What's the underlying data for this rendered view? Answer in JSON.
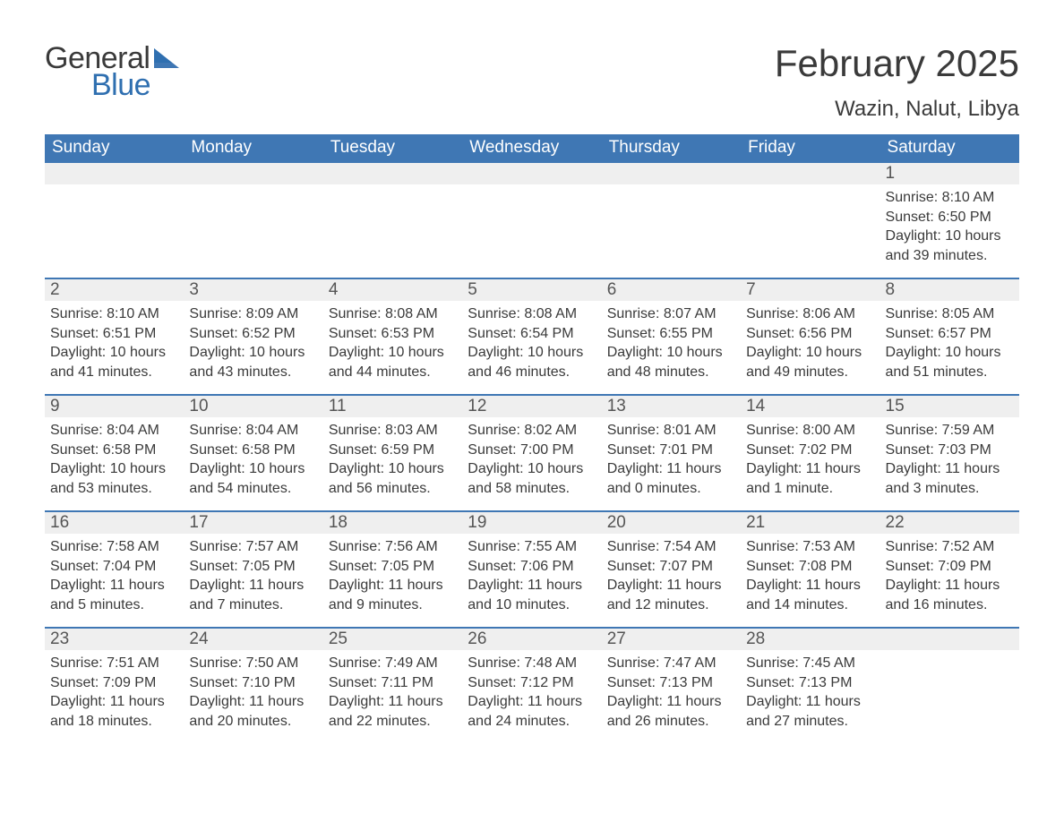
{
  "brand": {
    "word1": "General",
    "word2": "Blue",
    "triangle_color": "#3f77b4"
  },
  "title": "February 2025",
  "location": "Wazin, Nalut, Libya",
  "colors": {
    "header_bg": "#3f77b4",
    "header_text": "#ffffff",
    "band_bg": "#efefef",
    "rule": "#3f77b4",
    "body_text": "#3a3a3a",
    "page_bg": "#ffffff",
    "logo_blue": "#2f6fb0"
  },
  "typography": {
    "month_title_fontsize": 42,
    "location_fontsize": 24,
    "dow_fontsize": 19,
    "daynum_fontsize": 19,
    "body_fontsize": 16
  },
  "days_of_week": [
    "Sunday",
    "Monday",
    "Tuesday",
    "Wednesday",
    "Thursday",
    "Friday",
    "Saturday"
  ],
  "weeks": [
    [
      {
        "n": "",
        "sunrise": "",
        "sunset": "",
        "daylight": ""
      },
      {
        "n": "",
        "sunrise": "",
        "sunset": "",
        "daylight": ""
      },
      {
        "n": "",
        "sunrise": "",
        "sunset": "",
        "daylight": ""
      },
      {
        "n": "",
        "sunrise": "",
        "sunset": "",
        "daylight": ""
      },
      {
        "n": "",
        "sunrise": "",
        "sunset": "",
        "daylight": ""
      },
      {
        "n": "",
        "sunrise": "",
        "sunset": "",
        "daylight": ""
      },
      {
        "n": "1",
        "sunrise": "Sunrise: 8:10 AM",
        "sunset": "Sunset: 6:50 PM",
        "daylight": "Daylight: 10 hours and 39 minutes."
      }
    ],
    [
      {
        "n": "2",
        "sunrise": "Sunrise: 8:10 AM",
        "sunset": "Sunset: 6:51 PM",
        "daylight": "Daylight: 10 hours and 41 minutes."
      },
      {
        "n": "3",
        "sunrise": "Sunrise: 8:09 AM",
        "sunset": "Sunset: 6:52 PM",
        "daylight": "Daylight: 10 hours and 43 minutes."
      },
      {
        "n": "4",
        "sunrise": "Sunrise: 8:08 AM",
        "sunset": "Sunset: 6:53 PM",
        "daylight": "Daylight: 10 hours and 44 minutes."
      },
      {
        "n": "5",
        "sunrise": "Sunrise: 8:08 AM",
        "sunset": "Sunset: 6:54 PM",
        "daylight": "Daylight: 10 hours and 46 minutes."
      },
      {
        "n": "6",
        "sunrise": "Sunrise: 8:07 AM",
        "sunset": "Sunset: 6:55 PM",
        "daylight": "Daylight: 10 hours and 48 minutes."
      },
      {
        "n": "7",
        "sunrise": "Sunrise: 8:06 AM",
        "sunset": "Sunset: 6:56 PM",
        "daylight": "Daylight: 10 hours and 49 minutes."
      },
      {
        "n": "8",
        "sunrise": "Sunrise: 8:05 AM",
        "sunset": "Sunset: 6:57 PM",
        "daylight": "Daylight: 10 hours and 51 minutes."
      }
    ],
    [
      {
        "n": "9",
        "sunrise": "Sunrise: 8:04 AM",
        "sunset": "Sunset: 6:58 PM",
        "daylight": "Daylight: 10 hours and 53 minutes."
      },
      {
        "n": "10",
        "sunrise": "Sunrise: 8:04 AM",
        "sunset": "Sunset: 6:58 PM",
        "daylight": "Daylight: 10 hours and 54 minutes."
      },
      {
        "n": "11",
        "sunrise": "Sunrise: 8:03 AM",
        "sunset": "Sunset: 6:59 PM",
        "daylight": "Daylight: 10 hours and 56 minutes."
      },
      {
        "n": "12",
        "sunrise": "Sunrise: 8:02 AM",
        "sunset": "Sunset: 7:00 PM",
        "daylight": "Daylight: 10 hours and 58 minutes."
      },
      {
        "n": "13",
        "sunrise": "Sunrise: 8:01 AM",
        "sunset": "Sunset: 7:01 PM",
        "daylight": "Daylight: 11 hours and 0 minutes."
      },
      {
        "n": "14",
        "sunrise": "Sunrise: 8:00 AM",
        "sunset": "Sunset: 7:02 PM",
        "daylight": "Daylight: 11 hours and 1 minute."
      },
      {
        "n": "15",
        "sunrise": "Sunrise: 7:59 AM",
        "sunset": "Sunset: 7:03 PM",
        "daylight": "Daylight: 11 hours and 3 minutes."
      }
    ],
    [
      {
        "n": "16",
        "sunrise": "Sunrise: 7:58 AM",
        "sunset": "Sunset: 7:04 PM",
        "daylight": "Daylight: 11 hours and 5 minutes."
      },
      {
        "n": "17",
        "sunrise": "Sunrise: 7:57 AM",
        "sunset": "Sunset: 7:05 PM",
        "daylight": "Daylight: 11 hours and 7 minutes."
      },
      {
        "n": "18",
        "sunrise": "Sunrise: 7:56 AM",
        "sunset": "Sunset: 7:05 PM",
        "daylight": "Daylight: 11 hours and 9 minutes."
      },
      {
        "n": "19",
        "sunrise": "Sunrise: 7:55 AM",
        "sunset": "Sunset: 7:06 PM",
        "daylight": "Daylight: 11 hours and 10 minutes."
      },
      {
        "n": "20",
        "sunrise": "Sunrise: 7:54 AM",
        "sunset": "Sunset: 7:07 PM",
        "daylight": "Daylight: 11 hours and 12 minutes."
      },
      {
        "n": "21",
        "sunrise": "Sunrise: 7:53 AM",
        "sunset": "Sunset: 7:08 PM",
        "daylight": "Daylight: 11 hours and 14 minutes."
      },
      {
        "n": "22",
        "sunrise": "Sunrise: 7:52 AM",
        "sunset": "Sunset: 7:09 PM",
        "daylight": "Daylight: 11 hours and 16 minutes."
      }
    ],
    [
      {
        "n": "23",
        "sunrise": "Sunrise: 7:51 AM",
        "sunset": "Sunset: 7:09 PM",
        "daylight": "Daylight: 11 hours and 18 minutes."
      },
      {
        "n": "24",
        "sunrise": "Sunrise: 7:50 AM",
        "sunset": "Sunset: 7:10 PM",
        "daylight": "Daylight: 11 hours and 20 minutes."
      },
      {
        "n": "25",
        "sunrise": "Sunrise: 7:49 AM",
        "sunset": "Sunset: 7:11 PM",
        "daylight": "Daylight: 11 hours and 22 minutes."
      },
      {
        "n": "26",
        "sunrise": "Sunrise: 7:48 AM",
        "sunset": "Sunset: 7:12 PM",
        "daylight": "Daylight: 11 hours and 24 minutes."
      },
      {
        "n": "27",
        "sunrise": "Sunrise: 7:47 AM",
        "sunset": "Sunset: 7:13 PM",
        "daylight": "Daylight: 11 hours and 26 minutes."
      },
      {
        "n": "28",
        "sunrise": "Sunrise: 7:45 AM",
        "sunset": "Sunset: 7:13 PM",
        "daylight": "Daylight: 11 hours and 27 minutes."
      },
      {
        "n": "",
        "sunrise": "",
        "sunset": "",
        "daylight": ""
      }
    ]
  ]
}
